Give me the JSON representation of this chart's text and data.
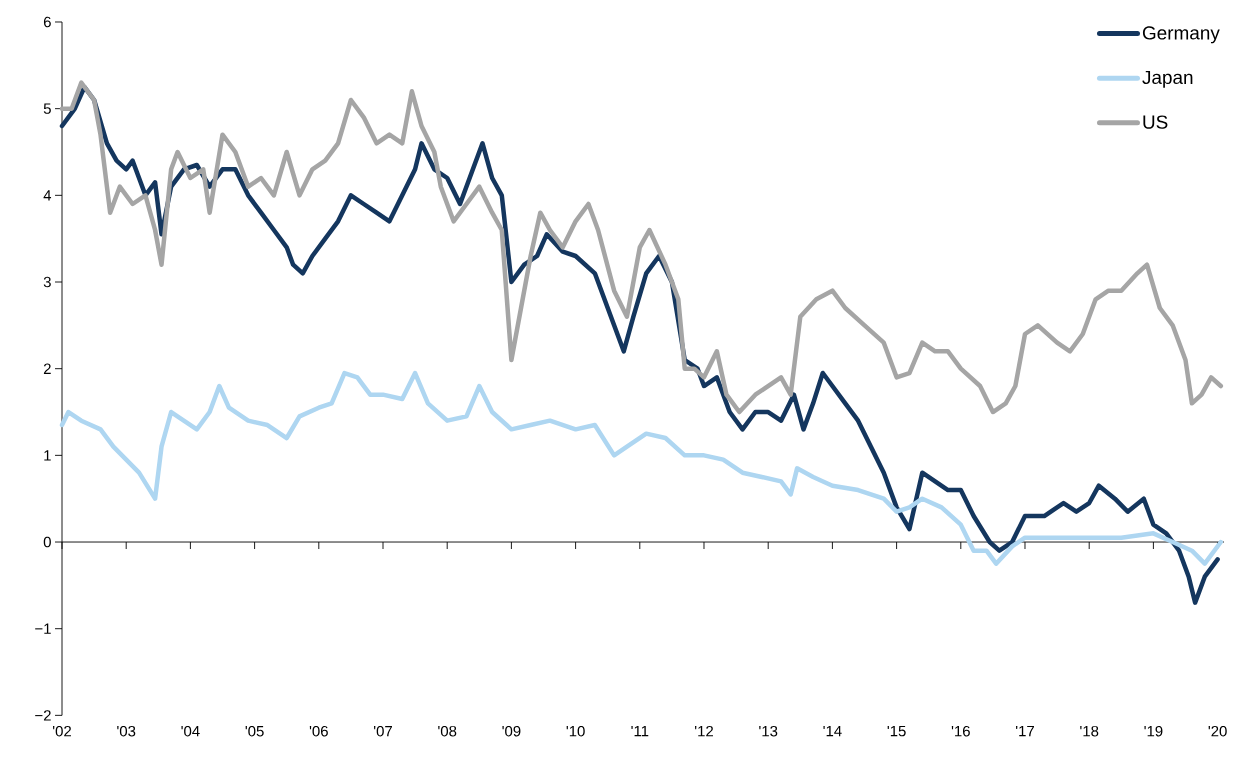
{
  "chart_data": {
    "type": "line",
    "xlim": [
      2002,
      2020.1
    ],
    "ylim": [
      -2,
      6
    ],
    "xticks": [
      {
        "value": 2002,
        "label": "'02"
      },
      {
        "value": 2003,
        "label": "'03"
      },
      {
        "value": 2004,
        "label": "'04"
      },
      {
        "value": 2005,
        "label": "'05"
      },
      {
        "value": 2006,
        "label": "'06"
      },
      {
        "value": 2007,
        "label": "'07"
      },
      {
        "value": 2008,
        "label": "'08"
      },
      {
        "value": 2009,
        "label": "'09"
      },
      {
        "value": 2010,
        "label": "'10"
      },
      {
        "value": 2011,
        "label": "'11"
      },
      {
        "value": 2012,
        "label": "'12"
      },
      {
        "value": 2013,
        "label": "'13"
      },
      {
        "value": 2014,
        "label": "'14"
      },
      {
        "value": 2015,
        "label": "'15"
      },
      {
        "value": 2016,
        "label": "'16"
      },
      {
        "value": 2017,
        "label": "'17"
      },
      {
        "value": 2018,
        "label": "'18"
      },
      {
        "value": 2019,
        "label": "'19"
      },
      {
        "value": 2020,
        "label": "'20"
      }
    ],
    "yticks": [
      {
        "value": -2,
        "label": "−2"
      },
      {
        "value": -1,
        "label": "−1"
      },
      0,
      1,
      2,
      3,
      4,
      5,
      6
    ],
    "legend": "top right",
    "marker": "none",
    "line_style": "solid",
    "series": [
      {
        "name": "Germany",
        "color": "#14365e",
        "x": [
          2002.0,
          2002.2,
          2002.35,
          2002.5,
          2002.7,
          2002.85,
          2003.0,
          2003.1,
          2003.3,
          2003.45,
          2003.55,
          2003.7,
          2003.9,
          2004.1,
          2004.3,
          2004.5,
          2004.7,
          2004.9,
          2005.1,
          2005.3,
          2005.5,
          2005.6,
          2005.75,
          2005.9,
          2006.1,
          2006.3,
          2006.5,
          2006.7,
          2006.9,
          2007.1,
          2007.3,
          2007.5,
          2007.6,
          2007.8,
          2008.0,
          2008.2,
          2008.4,
          2008.55,
          2008.7,
          2008.85,
          2009.0,
          2009.2,
          2009.4,
          2009.55,
          2009.8,
          2010.0,
          2010.3,
          2010.6,
          2010.75,
          2010.9,
          2011.1,
          2011.3,
          2011.5,
          2011.7,
          2011.9,
          2012.0,
          2012.2,
          2012.4,
          2012.6,
          2012.8,
          2013.0,
          2013.2,
          2013.4,
          2013.55,
          2013.7,
          2013.85,
          2014.0,
          2014.2,
          2014.4,
          2014.6,
          2014.8,
          2015.0,
          2015.2,
          2015.4,
          2015.6,
          2015.8,
          2016.0,
          2016.2,
          2016.45,
          2016.6,
          2016.8,
          2017.0,
          2017.3,
          2017.6,
          2017.8,
          2018.0,
          2018.15,
          2018.4,
          2018.6,
          2018.85,
          2019.0,
          2019.2,
          2019.4,
          2019.55,
          2019.65,
          2019.8,
          2020.0
        ],
        "values": [
          4.8,
          5.0,
          5.25,
          5.1,
          4.6,
          4.4,
          4.3,
          4.4,
          4.0,
          4.15,
          3.55,
          4.1,
          4.3,
          4.35,
          4.1,
          4.3,
          4.3,
          4.0,
          3.8,
          3.6,
          3.4,
          3.2,
          3.1,
          3.3,
          3.5,
          3.7,
          4.0,
          3.9,
          3.8,
          3.7,
          4.0,
          4.3,
          4.6,
          4.3,
          4.2,
          3.9,
          4.3,
          4.6,
          4.2,
          4.0,
          3.0,
          3.2,
          3.3,
          3.55,
          3.35,
          3.3,
          3.1,
          2.5,
          2.2,
          2.6,
          3.1,
          3.3,
          3.0,
          2.1,
          2.0,
          1.8,
          1.9,
          1.5,
          1.3,
          1.5,
          1.5,
          1.4,
          1.7,
          1.3,
          1.6,
          1.95,
          1.8,
          1.6,
          1.4,
          1.1,
          0.8,
          0.4,
          0.15,
          0.8,
          0.7,
          0.6,
          0.6,
          0.3,
          0.0,
          -0.1,
          0.0,
          0.3,
          0.3,
          0.45,
          0.35,
          0.45,
          0.65,
          0.5,
          0.35,
          0.5,
          0.2,
          0.1,
          -0.1,
          -0.4,
          -0.7,
          -0.4,
          -0.2
        ]
      },
      {
        "name": "Japan",
        "color": "#aed6f1",
        "x": [
          2002.0,
          2002.1,
          2002.3,
          2002.6,
          2002.8,
          2003.0,
          2003.2,
          2003.45,
          2003.55,
          2003.7,
          2003.9,
          2004.1,
          2004.3,
          2004.45,
          2004.6,
          2004.9,
          2005.2,
          2005.5,
          2005.7,
          2006.0,
          2006.2,
          2006.4,
          2006.6,
          2006.8,
          2007.0,
          2007.3,
          2007.5,
          2007.7,
          2008.0,
          2008.3,
          2008.5,
          2008.7,
          2009.0,
          2009.3,
          2009.6,
          2010.0,
          2010.3,
          2010.6,
          2010.8,
          2011.1,
          2011.4,
          2011.7,
          2012.0,
          2012.3,
          2012.6,
          2012.9,
          2013.2,
          2013.35,
          2013.45,
          2013.7,
          2014.0,
          2014.4,
          2014.8,
          2015.0,
          2015.2,
          2015.4,
          2015.7,
          2016.0,
          2016.2,
          2016.4,
          2016.55,
          2016.8,
          2017.0,
          2017.5,
          2018.0,
          2018.5,
          2019.0,
          2019.3,
          2019.6,
          2019.8,
          2020.05
        ],
        "values": [
          1.35,
          1.5,
          1.4,
          1.3,
          1.1,
          0.95,
          0.8,
          0.5,
          1.1,
          1.5,
          1.4,
          1.3,
          1.5,
          1.8,
          1.55,
          1.4,
          1.35,
          1.2,
          1.45,
          1.55,
          1.6,
          1.95,
          1.9,
          1.7,
          1.7,
          1.65,
          1.95,
          1.6,
          1.4,
          1.45,
          1.8,
          1.5,
          1.3,
          1.35,
          1.4,
          1.3,
          1.35,
          1.0,
          1.1,
          1.25,
          1.2,
          1.0,
          1.0,
          0.95,
          0.8,
          0.75,
          0.7,
          0.55,
          0.85,
          0.75,
          0.65,
          0.6,
          0.5,
          0.35,
          0.4,
          0.5,
          0.4,
          0.2,
          -0.1,
          -0.1,
          -0.25,
          -0.05,
          0.05,
          0.05,
          0.05,
          0.05,
          0.1,
          0.0,
          -0.1,
          -0.25,
          0.0
        ]
      },
      {
        "name": "US",
        "color": "#a5a5a5",
        "x": [
          2002.0,
          2002.15,
          2002.3,
          2002.5,
          2002.6,
          2002.75,
          2002.9,
          2003.1,
          2003.3,
          2003.45,
          2003.55,
          2003.7,
          2003.8,
          2004.0,
          2004.2,
          2004.3,
          2004.5,
          2004.7,
          2004.9,
          2005.1,
          2005.3,
          2005.5,
          2005.7,
          2005.9,
          2006.1,
          2006.3,
          2006.5,
          2006.7,
          2006.9,
          2007.1,
          2007.3,
          2007.45,
          2007.6,
          2007.8,
          2007.9,
          2008.1,
          2008.3,
          2008.5,
          2008.7,
          2008.85,
          2009.0,
          2009.15,
          2009.3,
          2009.45,
          2009.6,
          2009.8,
          2010.0,
          2010.2,
          2010.35,
          2010.6,
          2010.8,
          2011.0,
          2011.15,
          2011.4,
          2011.6,
          2011.7,
          2011.85,
          2012.0,
          2012.2,
          2012.35,
          2012.55,
          2012.8,
          2013.0,
          2013.2,
          2013.35,
          2013.5,
          2013.75,
          2014.0,
          2014.2,
          2014.5,
          2014.8,
          2015.0,
          2015.2,
          2015.4,
          2015.6,
          2015.8,
          2016.0,
          2016.3,
          2016.5,
          2016.7,
          2016.85,
          2017.0,
          2017.2,
          2017.5,
          2017.7,
          2017.9,
          2018.1,
          2018.3,
          2018.5,
          2018.75,
          2018.9,
          2019.1,
          2019.3,
          2019.5,
          2019.6,
          2019.75,
          2019.9,
          2020.05
        ],
        "values": [
          5.0,
          5.0,
          5.3,
          5.1,
          4.7,
          3.8,
          4.1,
          3.9,
          4.0,
          3.6,
          3.2,
          4.3,
          4.5,
          4.2,
          4.3,
          3.8,
          4.7,
          4.5,
          4.1,
          4.2,
          4.0,
          4.5,
          4.0,
          4.3,
          4.4,
          4.6,
          5.1,
          4.9,
          4.6,
          4.7,
          4.6,
          5.2,
          4.8,
          4.5,
          4.1,
          3.7,
          3.9,
          4.1,
          3.8,
          3.6,
          2.1,
          2.7,
          3.3,
          3.8,
          3.6,
          3.4,
          3.7,
          3.9,
          3.6,
          2.9,
          2.6,
          3.4,
          3.6,
          3.2,
          2.8,
          2.0,
          2.0,
          1.9,
          2.2,
          1.7,
          1.5,
          1.7,
          1.8,
          1.9,
          1.7,
          2.6,
          2.8,
          2.9,
          2.7,
          2.5,
          2.3,
          1.9,
          1.95,
          2.3,
          2.2,
          2.2,
          2.0,
          1.8,
          1.5,
          1.6,
          1.8,
          2.4,
          2.5,
          2.3,
          2.2,
          2.4,
          2.8,
          2.9,
          2.9,
          3.1,
          3.2,
          2.7,
          2.5,
          2.1,
          1.6,
          1.7,
          1.9,
          1.8
        ]
      }
    ]
  }
}
